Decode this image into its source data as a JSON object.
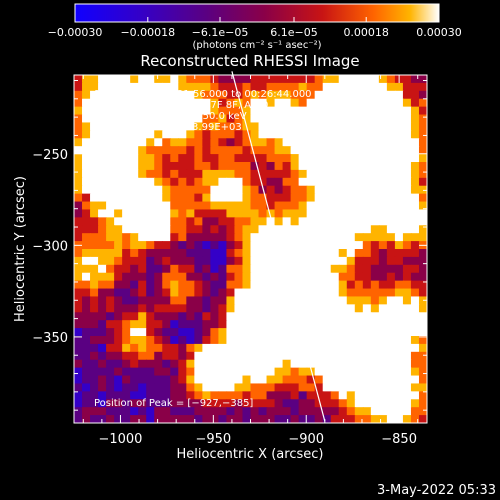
{
  "chart_data": {
    "type": "heatmap",
    "title": "Reconstructed RHESSI Image",
    "xlabel": "Heliocentric X (arcsec)",
    "ylabel": "Heliocentric Y (arcsec)",
    "x_range": [
      -1025,
      -835
    ],
    "y_range": [
      -397,
      -207
    ],
    "x_ticks": [
      -1000,
      -950,
      -900,
      -850
    ],
    "y_ticks": [
      -250,
      -300,
      -350
    ],
    "x_tick_labels": [
      "−1000",
      "−950",
      "−900",
      "−850"
    ],
    "y_tick_labels": [
      "−250",
      "−300",
      "−350"
    ],
    "colorbar": {
      "min": -0.0003,
      "max": 0.0003,
      "ticks": [
        -0.0003,
        -0.00018,
        -6.1e-05,
        6.1e-05,
        0.00018,
        0.0003
      ],
      "tick_labels": [
        "−0.00030",
        "−0.00018",
        "−6.1e−05",
        "6.1e−05",
        "0.00018",
        "0.00030"
      ],
      "unit_label": "(photons cm⁻² s⁻¹ asec⁻²)"
    },
    "annotations": [
      "16-Mar-2022 00:21:56.000 to 00:26:44.000",
      "Detectors: 3F 4F 5F 6F 7F 8F, Att 0",
      "Energy Range: 25.0 - 50.0 keV",
      "Clean     Total counts: 3.99E+03"
    ],
    "peak_label": "Position of Peak = [−927,−385]",
    "limb_line": {
      "points": [
        [
          -940,
          -205
        ],
        [
          -890,
          -396
        ]
      ]
    },
    "grid": false,
    "colormap": "blue-purple-red-yellow-white"
  },
  "footer": {
    "date": "3-May-2022 05:33"
  },
  "colors": {
    "background": "#000000",
    "foreground": "#ffffff",
    "colorbar_stops": [
      "#1000ff",
      "#3400c8",
      "#5a0082",
      "#8a0048",
      "#c81414",
      "#ff6400",
      "#ffb400",
      "#ffffff"
    ]
  }
}
